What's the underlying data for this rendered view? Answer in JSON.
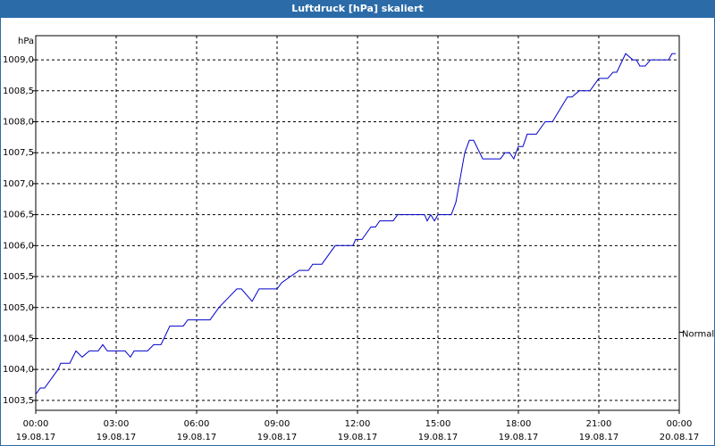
{
  "chart_data": {
    "type": "line",
    "title": "Luftdruck [hPa] skaliert",
    "unit": "hPa",
    "color": "#0000cc",
    "grid": true,
    "x": [
      0,
      0.17,
      0.33,
      0.83,
      0.93,
      1.27,
      1.5,
      1.73,
      2,
      2.33,
      2.5,
      2.67,
      3.33,
      3.53,
      3.67,
      4.17,
      4.4,
      4.67,
      5,
      5.5,
      5.67,
      6.5,
      6.83,
      7.5,
      7.67,
      8.07,
      8.33,
      9,
      9.17,
      9.5,
      9.83,
      10.17,
      10.33,
      10.67,
      11.17,
      11.83,
      11.93,
      12.17,
      12.5,
      12.67,
      12.83,
      13.33,
      13.5,
      14.5,
      14.6,
      14.73,
      14.87,
      15,
      15.5,
      15.67,
      16,
      16.17,
      16.33,
      16.67,
      17.33,
      17.5,
      17.67,
      17.83,
      18,
      18.17,
      18.33,
      18.67,
      19,
      19.27,
      19.83,
      20,
      20.27,
      20.67,
      21,
      21.33,
      21.53,
      21.67,
      22,
      22.27,
      22.4,
      22.53,
      22.73,
      22.93,
      23.6,
      23.73,
      23.87
    ],
    "values": [
      1003.6,
      1003.7,
      1003.7,
      1004.0,
      1004.1,
      1004.1,
      1004.3,
      1004.2,
      1004.3,
      1004.3,
      1004.4,
      1004.3,
      1004.3,
      1004.2,
      1004.3,
      1004.3,
      1004.4,
      1004.4,
      1004.7,
      1004.7,
      1004.8,
      1004.8,
      1005.0,
      1005.3,
      1005.3,
      1005.1,
      1005.3,
      1005.3,
      1005.4,
      1005.5,
      1005.6,
      1005.6,
      1005.7,
      1005.7,
      1006.0,
      1006.0,
      1006.1,
      1006.1,
      1006.3,
      1006.3,
      1006.4,
      1006.4,
      1006.5,
      1006.5,
      1006.4,
      1006.5,
      1006.4,
      1006.5,
      1006.5,
      1006.7,
      1007.5,
      1007.7,
      1007.7,
      1007.4,
      1007.4,
      1007.5,
      1007.5,
      1007.4,
      1007.6,
      1007.6,
      1007.8,
      1007.8,
      1008.0,
      1008.0,
      1008.4,
      1008.4,
      1008.5,
      1008.5,
      1008.7,
      1008.7,
      1008.8,
      1008.8,
      1009.1,
      1009.0,
      1009.0,
      1008.9,
      1008.9,
      1009.0,
      1009.0,
      1009.1,
      1009.1
    ],
    "xlim": [
      0,
      24
    ],
    "xticks": [
      {
        "value": 0,
        "label": "00:00",
        "date": "19.08.17"
      },
      {
        "value": 3,
        "label": "03:00",
        "date": "19.08.17"
      },
      {
        "value": 6,
        "label": "06:00",
        "date": "19.08.17"
      },
      {
        "value": 9,
        "label": "09:00",
        "date": "19.08.17"
      },
      {
        "value": 12,
        "label": "12:00",
        "date": "19.08.17"
      },
      {
        "value": 15,
        "label": "15:00",
        "date": "19.08.17"
      },
      {
        "value": 18,
        "label": "18:00",
        "date": "19.08.17"
      },
      {
        "value": 21,
        "label": "21:00",
        "date": "19.08.17"
      },
      {
        "value": 24,
        "label": "00:00",
        "date": "20.08.17"
      }
    ],
    "ylim": [
      1003.34,
      1009.39
    ],
    "yticks": [
      {
        "value": 1003.5,
        "label": "1003,5"
      },
      {
        "value": 1004.0,
        "label": "1004,0"
      },
      {
        "value": 1004.5,
        "label": "1004,5"
      },
      {
        "value": 1005.0,
        "label": "1005,0"
      },
      {
        "value": 1005.5,
        "label": "1005,5"
      },
      {
        "value": 1006.0,
        "label": "1006,0"
      },
      {
        "value": 1006.5,
        "label": "1006,5"
      },
      {
        "value": 1007.0,
        "label": "1007,0"
      },
      {
        "value": 1007.5,
        "label": "1007,5"
      },
      {
        "value": 1008.0,
        "label": "1008,0"
      },
      {
        "value": 1008.5,
        "label": "1008,5"
      },
      {
        "value": 1009.0,
        "label": "1009,0"
      }
    ],
    "normal": {
      "label": "Normal",
      "value": 1004.6
    }
  }
}
